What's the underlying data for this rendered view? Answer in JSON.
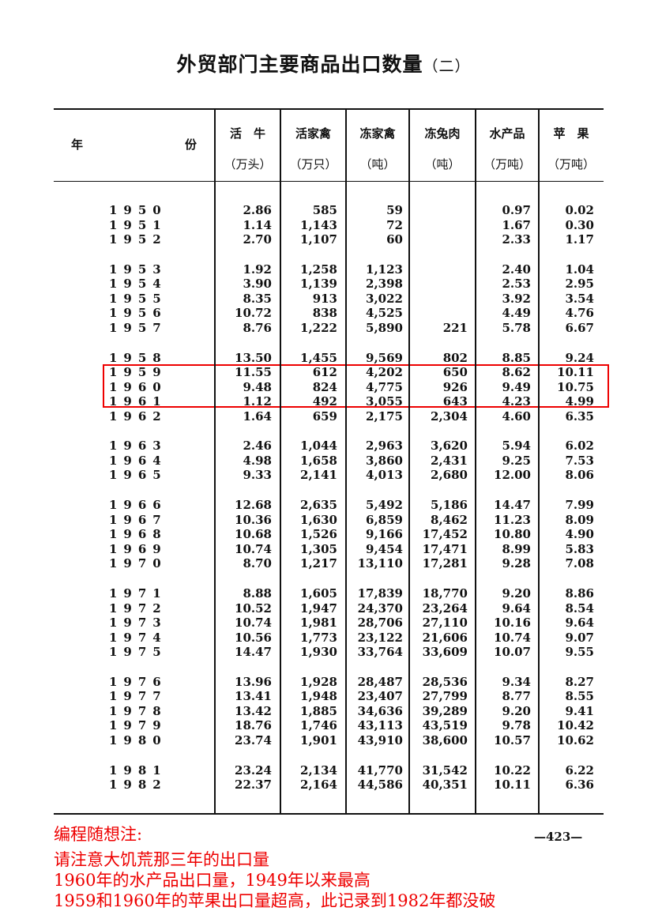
{
  "title": {
    "main": "外贸部门主要商品出口数量",
    "sub": "（二）"
  },
  "header": {
    "year": [
      "年",
      "份"
    ],
    "columns": [
      {
        "name": "活　牛",
        "unit": "（万头）"
      },
      {
        "name": "活家禽",
        "unit": "（万只）"
      },
      {
        "name": "冻家禽",
        "unit": "（吨）"
      },
      {
        "name": "冻兔肉",
        "unit": "（吨）"
      },
      {
        "name": "水产品",
        "unit": "（万吨）"
      },
      {
        "name": "苹　果",
        "unit": "（万吨）"
      }
    ]
  },
  "groups": [
    [
      [
        "1950",
        "2.86",
        "585",
        "59",
        "",
        "0.97",
        "0.02"
      ],
      [
        "1951",
        "1.14",
        "1,143",
        "72",
        "",
        "1.67",
        "0.30"
      ],
      [
        "1952",
        "2.70",
        "1,107",
        "60",
        "",
        "2.33",
        "1.17"
      ]
    ],
    [
      [
        "1953",
        "1.92",
        "1,258",
        "1,123",
        "",
        "2.40",
        "1.04"
      ],
      [
        "1954",
        "3.90",
        "1,139",
        "2,398",
        "",
        "2.53",
        "2.95"
      ],
      [
        "1955",
        "8.35",
        "913",
        "3,022",
        "",
        "3.92",
        "3.54"
      ],
      [
        "1956",
        "10.72",
        "838",
        "4,525",
        "",
        "4.49",
        "4.76"
      ],
      [
        "1957",
        "8.76",
        "1,222",
        "5,890",
        "221",
        "5.78",
        "6.67"
      ]
    ],
    [
      [
        "1958",
        "13.50",
        "1,455",
        "9,569",
        "802",
        "8.85",
        "9.24"
      ],
      [
        "1959",
        "11.55",
        "612",
        "4,202",
        "650",
        "8.62",
        "10.11"
      ],
      [
        "1960",
        "9.48",
        "824",
        "4,775",
        "926",
        "9.49",
        "10.75"
      ],
      [
        "1961",
        "1.12",
        "492",
        "3,055",
        "643",
        "4.23",
        "4.99"
      ],
      [
        "1962",
        "1.64",
        "659",
        "2,175",
        "2,304",
        "4.60",
        "6.35"
      ]
    ],
    [
      [
        "1963",
        "2.46",
        "1,044",
        "2,963",
        "3,620",
        "5.94",
        "6.02"
      ],
      [
        "1964",
        "4.98",
        "1,658",
        "3,860",
        "2,431",
        "9.25",
        "7.53"
      ],
      [
        "1965",
        "9.33",
        "2,141",
        "4,013",
        "2,680",
        "12.00",
        "8.06"
      ]
    ],
    [
      [
        "1966",
        "12.68",
        "2,635",
        "5,492",
        "5,186",
        "14.47",
        "7.99"
      ],
      [
        "1967",
        "10.36",
        "1,630",
        "6,859",
        "8,462",
        "11.23",
        "8.09"
      ],
      [
        "1968",
        "10.68",
        "1,526",
        "9,166",
        "17,452",
        "10.80",
        "4.90"
      ],
      [
        "1969",
        "10.74",
        "1,305",
        "9,454",
        "17,471",
        "8.99",
        "5.83"
      ],
      [
        "1970",
        "8.70",
        "1,217",
        "13,110",
        "17,281",
        "9.28",
        "7.08"
      ]
    ],
    [
      [
        "1971",
        "8.88",
        "1,605",
        "17,839",
        "18,770",
        "9.20",
        "8.86"
      ],
      [
        "1972",
        "10.52",
        "1,947",
        "24,370",
        "23,264",
        "9.64",
        "8.54"
      ],
      [
        "1973",
        "10.74",
        "1,981",
        "28,706",
        "27,110",
        "10.16",
        "9.64"
      ],
      [
        "1974",
        "10.56",
        "1,773",
        "23,122",
        "21,606",
        "10.74",
        "9.07"
      ],
      [
        "1975",
        "14.47",
        "1,930",
        "33,764",
        "33,609",
        "10.07",
        "9.55"
      ]
    ],
    [
      [
        "1976",
        "13.96",
        "1,928",
        "28,487",
        "28,536",
        "9.34",
        "8.27"
      ],
      [
        "1977",
        "13.41",
        "1,948",
        "23,407",
        "27,799",
        "8.77",
        "8.55"
      ],
      [
        "1978",
        "13.42",
        "1,885",
        "34,636",
        "39,289",
        "9.20",
        "9.41"
      ],
      [
        "1979",
        "18.76",
        "1,746",
        "43,113",
        "43,519",
        "9.78",
        "10.42"
      ],
      [
        "1980",
        "23.74",
        "1,901",
        "43,910",
        "38,600",
        "10.57",
        "10.62"
      ]
    ],
    [
      [
        "1981",
        "23.24",
        "2,134",
        "41,770",
        "31,542",
        "10.22",
        "6.22"
      ],
      [
        "1982",
        "22.37",
        "2,164",
        "44,586",
        "40,351",
        "10.11",
        "6.36"
      ]
    ]
  ],
  "highlight_years": [
    "1959",
    "1960",
    "1961"
  ],
  "page_number": "—423—",
  "notes": [
    "编程随想注:",
    "请注意大饥荒那三年的出口量",
    "1960年的水产品出口量，1949年以来最高",
    "1959和1960年的苹果出口量超高，此记录到1982年都没破"
  ],
  "colors": {
    "annotation": "#ee0000",
    "text": "#111111"
  }
}
